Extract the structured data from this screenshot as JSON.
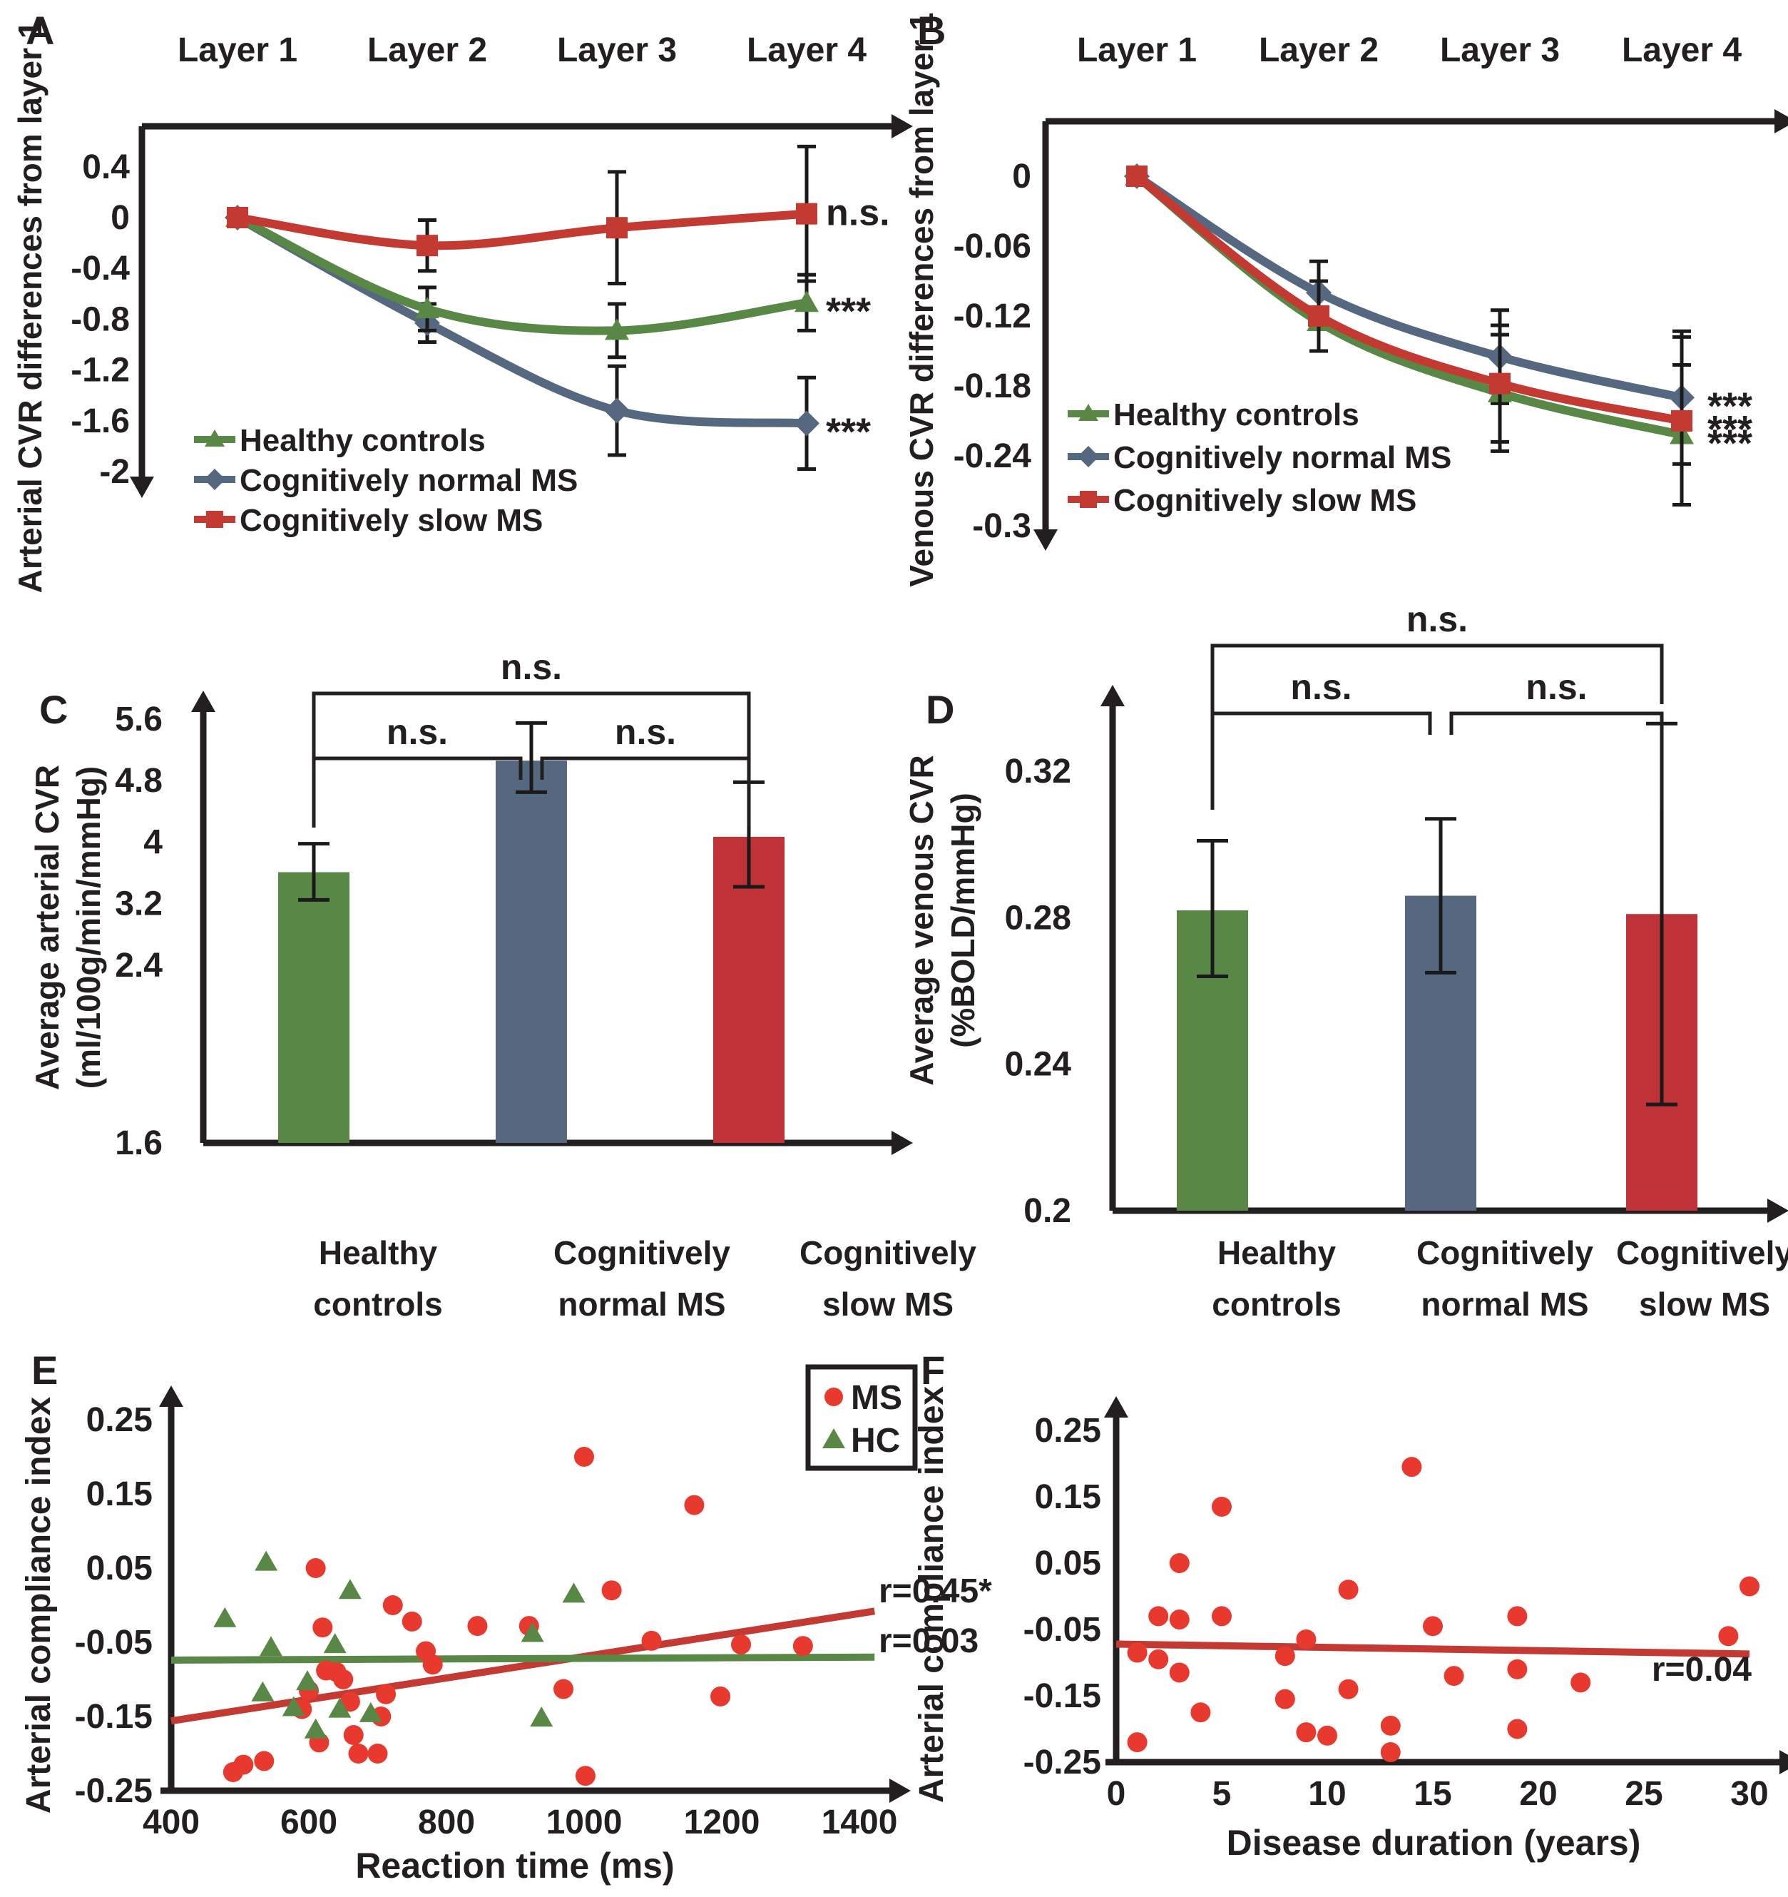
{
  "colors": {
    "green": "#598745",
    "blue": "#55687f",
    "red": "#c23a31",
    "bar_red": "#bf3338",
    "dot_red": "#e8392e",
    "axis": "#231f20",
    "text": "#231f20",
    "err": "#1a1a1a"
  },
  "panels": {
    "A": {
      "letter": "A"
    },
    "B": {
      "letter": "B"
    },
    "C": {
      "letter": "C"
    },
    "D": {
      "letter": "D"
    },
    "E": {
      "letter": "E"
    },
    "F": {
      "letter": "F"
    }
  },
  "chart_data": [
    {
      "id": "A",
      "type": "line",
      "x_categories": [
        "Layer 1",
        "Layer 2",
        "Layer 3",
        "Layer 4"
      ],
      "ylabel": "Arterial CVR differences from layer 1",
      "yticks": [
        "0.4",
        "0",
        "-0.4",
        "-0.8",
        "-1.2",
        "-1.6",
        "-2"
      ],
      "ytick_values": [
        0.4,
        0,
        -0.4,
        -0.8,
        -1.2,
        -1.6,
        -2
      ],
      "legend": [
        "Healthy controls",
        "Cognitively normal MS",
        "Cognitively slow MS"
      ],
      "series": [
        {
          "name": "Healthy controls",
          "color_key": "green",
          "marker": "triangle",
          "values": [
            0,
            -0.72,
            -0.89,
            -0.67
          ],
          "errors": [
            null,
            0.17,
            0.21,
            0.22
          ],
          "sig": "***"
        },
        {
          "name": "Cognitively normal MS",
          "color_key": "blue",
          "marker": "diamond",
          "values": [
            0,
            -0.83,
            -1.52,
            -1.62
          ],
          "errors": [
            null,
            0.15,
            0.35,
            0.36
          ],
          "sig": "***"
        },
        {
          "name": "Cognitively slow MS",
          "color_key": "red",
          "marker": "square",
          "values": [
            0,
            -0.22,
            -0.08,
            0.03
          ],
          "errors": [
            null,
            0.2,
            0.44,
            0.53
          ],
          "sig": "n.s."
        }
      ]
    },
    {
      "id": "B",
      "type": "line",
      "x_categories": [
        "Layer 1",
        "Layer 2",
        "Layer 3",
        "Layer 4"
      ],
      "ylabel": "Venous CVR differences from layer 1",
      "yticks": [
        "0",
        "-0.06",
        "-0.12",
        "-0.18",
        "-0.24",
        "-0.3"
      ],
      "ytick_values": [
        0,
        -0.06,
        -0.12,
        -0.18,
        -0.24,
        -0.3
      ],
      "legend": [
        "Healthy controls",
        "Cognitively normal MS",
        "Cognitively slow MS"
      ],
      "series": [
        {
          "name": "Healthy controls",
          "color_key": "green",
          "marker": "triangle",
          "values": [
            0,
            -0.125,
            -0.186,
            -0.222
          ],
          "errors": [
            null,
            null,
            0.05,
            0.06
          ],
          "sig": "***"
        },
        {
          "name": "Cognitively normal MS",
          "color_key": "blue",
          "marker": "diamond",
          "values": [
            0,
            -0.1,
            -0.155,
            -0.19
          ],
          "errors": [
            null,
            0.027,
            0.04,
            0.057
          ],
          "sig": "***"
        },
        {
          "name": "Cognitively slow MS",
          "color_key": "red",
          "marker": "square",
          "values": [
            0,
            -0.12,
            -0.178,
            -0.21
          ],
          "errors": [
            null,
            0.03,
            0.05,
            0.072
          ],
          "sig": "***"
        }
      ]
    },
    {
      "id": "C",
      "type": "bar",
      "categories": [
        [
          "Healthy",
          "controls"
        ],
        [
          "Cognitively",
          "normal MS"
        ],
        [
          "Cognitively",
          "slow MS"
        ]
      ],
      "values": [
        3.61,
        5.06,
        4.07
      ],
      "err_low": [
        3.25,
        4.65,
        3.42
      ],
      "err_high": [
        3.98,
        5.55,
        4.78
      ],
      "bar_colors": [
        "green",
        "blue",
        "bar_red"
      ],
      "ylabel_lines": [
        "Average arterial CVR",
        "(ml/100g/min/mmHg)"
      ],
      "yticks": [
        "5.6",
        "4.8",
        "4",
        "3.2",
        "2.4",
        "1.6"
      ],
      "ytick_values": [
        5.6,
        4.8,
        4,
        3.2,
        2.4,
        1.6
      ],
      "brackets": [
        {
          "pair": [
            0,
            2
          ],
          "label": "n.s."
        },
        {
          "pair": [
            0,
            1
          ],
          "label": "n.s."
        },
        {
          "pair": [
            1,
            2
          ],
          "label": "n.s."
        }
      ]
    },
    {
      "id": "D",
      "type": "bar",
      "categories": [
        [
          "Healthy",
          "controls"
        ],
        [
          "Cognitively",
          "normal MS"
        ],
        [
          "Cognitively",
          "slow MS"
        ]
      ],
      "values": [
        0.282,
        0.286,
        0.281
      ],
      "err_low": [
        0.264,
        0.265,
        0.229
      ],
      "err_high": [
        0.301,
        0.307,
        0.333
      ],
      "bar_colors": [
        "green",
        "blue",
        "bar_red"
      ],
      "ylabel_lines": [
        "Average venous CVR",
        "(%BOLD/mmHg)"
      ],
      "yticks": [
        "0.32",
        "0.28",
        "0.24",
        "0.2"
      ],
      "ytick_values": [
        0.32,
        0.28,
        0.24,
        0.2
      ],
      "brackets": [
        {
          "pair": [
            0,
            2
          ],
          "label": "n.s."
        },
        {
          "pair": [
            0,
            1
          ],
          "label": "n.s."
        },
        {
          "pair": [
            1,
            2
          ],
          "label": "n.s."
        }
      ]
    },
    {
      "id": "E",
      "type": "scatter",
      "xlabel": "Reaction time (ms)",
      "ylabel": "Arterial compliance index",
      "xticks": [
        "400",
        "600",
        "800",
        "1000",
        "1200",
        "1400"
      ],
      "xtick_values": [
        400,
        600,
        800,
        1000,
        1200,
        1400
      ],
      "yticks": [
        "0.25",
        "0.15",
        "0.05",
        "-0.05",
        "-0.15",
        "-0.25"
      ],
      "ytick_values": [
        0.25,
        0.15,
        0.05,
        -0.05,
        -0.15,
        -0.25
      ],
      "legend": [
        {
          "name": "MS",
          "marker": "circle",
          "color_key": "dot_red"
        },
        {
          "name": "HC",
          "marker": "triangle",
          "color_key": "green"
        }
      ],
      "series": [
        {
          "name": "MS",
          "marker": "circle",
          "color_key": "dot_red",
          "points": [
            [
              490,
              -0.225
            ],
            [
              505,
              -0.215
            ],
            [
              535,
              -0.21
            ],
            [
              590,
              -0.14
            ],
            [
              600,
              -0.115
            ],
            [
              610,
              0.05
            ],
            [
              615,
              -0.185
            ],
            [
              620,
              -0.03
            ],
            [
              625,
              -0.088
            ],
            [
              640,
              -0.09
            ],
            [
              650,
              -0.1
            ],
            [
              660,
              -0.13
            ],
            [
              665,
              -0.175
            ],
            [
              672,
              -0.2
            ],
            [
              700,
              -0.2
            ],
            [
              705,
              -0.15
            ],
            [
              712,
              -0.12
            ],
            [
              722,
              0.0
            ],
            [
              750,
              -0.022
            ],
            [
              770,
              -0.062
            ],
            [
              780,
              -0.08
            ],
            [
              845,
              -0.028
            ],
            [
              920,
              -0.028
            ],
            [
              970,
              -0.113
            ],
            [
              1000,
              0.2
            ],
            [
              1002,
              -0.23
            ],
            [
              1040,
              0.02
            ],
            [
              1098,
              -0.048
            ],
            [
              1160,
              0.135
            ],
            [
              1198,
              -0.123
            ],
            [
              1228,
              -0.053
            ],
            [
              1318,
              -0.055
            ]
          ]
        },
        {
          "name": "HC",
          "marker": "triangle",
          "color_key": "green",
          "points": [
            [
              478,
              -0.018
            ],
            [
              538,
              0.058
            ],
            [
              545,
              -0.057
            ],
            [
              533,
              -0.118
            ],
            [
              578,
              -0.138
            ],
            [
              598,
              -0.103
            ],
            [
              610,
              -0.168
            ],
            [
              638,
              -0.053
            ],
            [
              645,
              -0.14
            ],
            [
              660,
              0.02
            ],
            [
              690,
              -0.146
            ],
            [
              925,
              -0.038
            ],
            [
              938,
              -0.152
            ],
            [
              985,
              0.015
            ]
          ]
        }
      ],
      "trends": [
        {
          "series": "MS",
          "color_key": "red",
          "x1": 400,
          "y1": -0.156,
          "x2": 1422,
          "y2": -0.008,
          "label": "r=0.45*"
        },
        {
          "series": "HC",
          "color_key": "green",
          "x1": 400,
          "y1": -0.074,
          "x2": 1422,
          "y2": -0.07,
          "label": "r=0.03"
        }
      ]
    },
    {
      "id": "F",
      "type": "scatter",
      "xlabel": "Disease duration (years)",
      "ylabel": "Arterial compliance index",
      "xticks": [
        "0",
        "5",
        "10",
        "15",
        "20",
        "25",
        "30"
      ],
      "xtick_values": [
        0,
        5,
        10,
        15,
        20,
        25,
        30
      ],
      "yticks": [
        "0.25",
        "0.15",
        "0.05",
        "-0.05",
        "-0.15",
        "-0.25"
      ],
      "ytick_values": [
        0.25,
        0.15,
        0.05,
        -0.05,
        -0.15,
        -0.25
      ],
      "series": [
        {
          "name": "MS",
          "marker": "circle",
          "color_key": "dot_red",
          "points": [
            [
              1,
              -0.22
            ],
            [
              1,
              -0.085
            ],
            [
              2,
              -0.03
            ],
            [
              2,
              -0.095
            ],
            [
              3,
              0.05
            ],
            [
              3,
              -0.035
            ],
            [
              3,
              -0.115
            ],
            [
              4,
              -0.175
            ],
            [
              5,
              0.135
            ],
            [
              5,
              -0.03
            ],
            [
              8,
              -0.09
            ],
            [
              8,
              -0.155
            ],
            [
              9,
              -0.065
            ],
            [
              9,
              -0.205
            ],
            [
              10,
              -0.21
            ],
            [
              11,
              0.01
            ],
            [
              11,
              -0.14
            ],
            [
              13,
              -0.195
            ],
            [
              13,
              -0.235
            ],
            [
              14,
              0.195
            ],
            [
              15,
              -0.045
            ],
            [
              16,
              -0.12
            ],
            [
              19,
              -0.03
            ],
            [
              19,
              -0.11
            ],
            [
              19,
              -0.2
            ],
            [
              22,
              -0.13
            ],
            [
              29,
              -0.06
            ],
            [
              30,
              0.015
            ]
          ]
        }
      ],
      "trends": [
        {
          "series": "MS",
          "color_key": "red",
          "x1": 0,
          "y1": -0.072,
          "x2": 30,
          "y2": -0.087,
          "label": "r=0.04"
        }
      ]
    }
  ]
}
